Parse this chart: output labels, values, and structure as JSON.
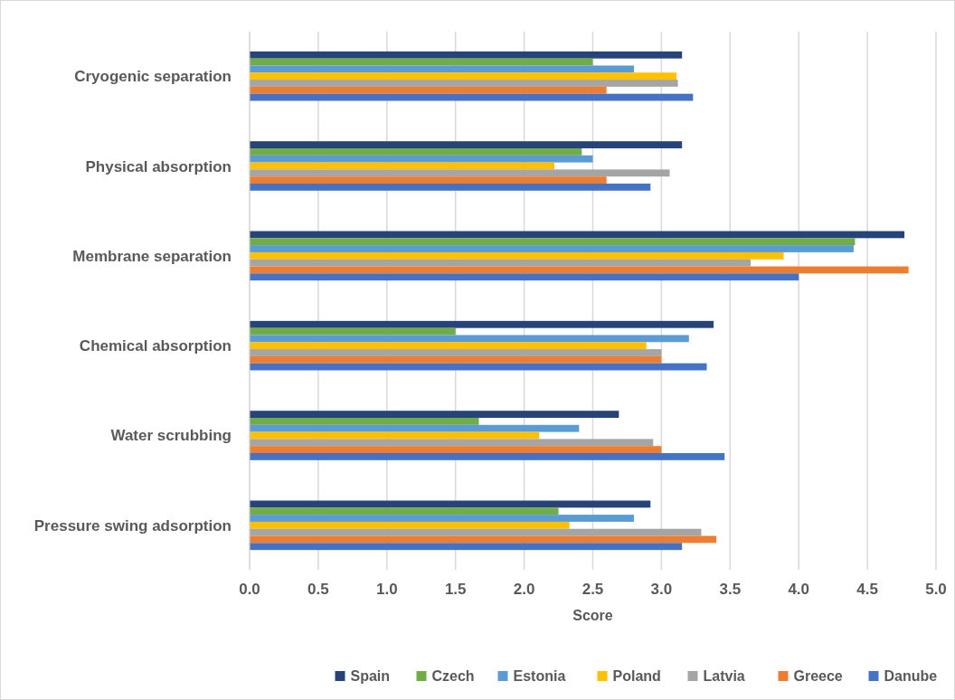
{
  "chart_data": {
    "type": "bar",
    "orientation": "horizontal",
    "xlabel": "Score",
    "categories": [
      "Cryogenic separation",
      "Physical absorption",
      "Membrane separation",
      "Chemical absorption",
      "Water scrubbing",
      "Pressure swing adsorption"
    ],
    "series": [
      {
        "name": "Spain",
        "color": "#264478",
        "values": [
          3.15,
          3.15,
          4.77,
          3.38,
          2.69,
          2.92
        ]
      },
      {
        "name": "Czech",
        "color": "#70ad47",
        "values": [
          2.5,
          2.42,
          4.41,
          1.5,
          1.67,
          2.25
        ]
      },
      {
        "name": "Estonia",
        "color": "#5b9bd5",
        "values": [
          2.8,
          2.5,
          4.4,
          3.2,
          2.4,
          2.8
        ]
      },
      {
        "name": "Poland",
        "color": "#ffc000",
        "values": [
          3.11,
          2.22,
          3.89,
          2.89,
          2.11,
          2.33
        ]
      },
      {
        "name": "Latvia",
        "color": "#a5a5a5",
        "values": [
          3.12,
          3.06,
          3.65,
          3.0,
          2.94,
          3.29
        ]
      },
      {
        "name": "Greece",
        "color": "#ed7d31",
        "values": [
          2.6,
          2.6,
          4.8,
          3.0,
          3.0,
          3.4
        ]
      },
      {
        "name": "Danube",
        "color": "#4472c4",
        "values": [
          3.23,
          2.92,
          4.0,
          3.33,
          3.46,
          3.15
        ]
      }
    ],
    "xlim": [
      0,
      5
    ],
    "xticks": [
      {
        "value": 0,
        "label": "0.0"
      },
      {
        "value": 0.5,
        "label": "0.5"
      },
      {
        "value": 1,
        "label": "1.0"
      },
      {
        "value": 1.5,
        "label": "1.5"
      },
      {
        "value": 2,
        "label": "2.0"
      },
      {
        "value": 2.5,
        "label": "2.5"
      },
      {
        "value": 3,
        "label": "3.0"
      },
      {
        "value": 3.5,
        "label": "3.5"
      },
      {
        "value": 4,
        "label": "4.0"
      },
      {
        "value": 4.5,
        "label": "4.5"
      },
      {
        "value": 5,
        "label": "5.0"
      }
    ],
    "grid": "x",
    "legend": "bottom"
  }
}
